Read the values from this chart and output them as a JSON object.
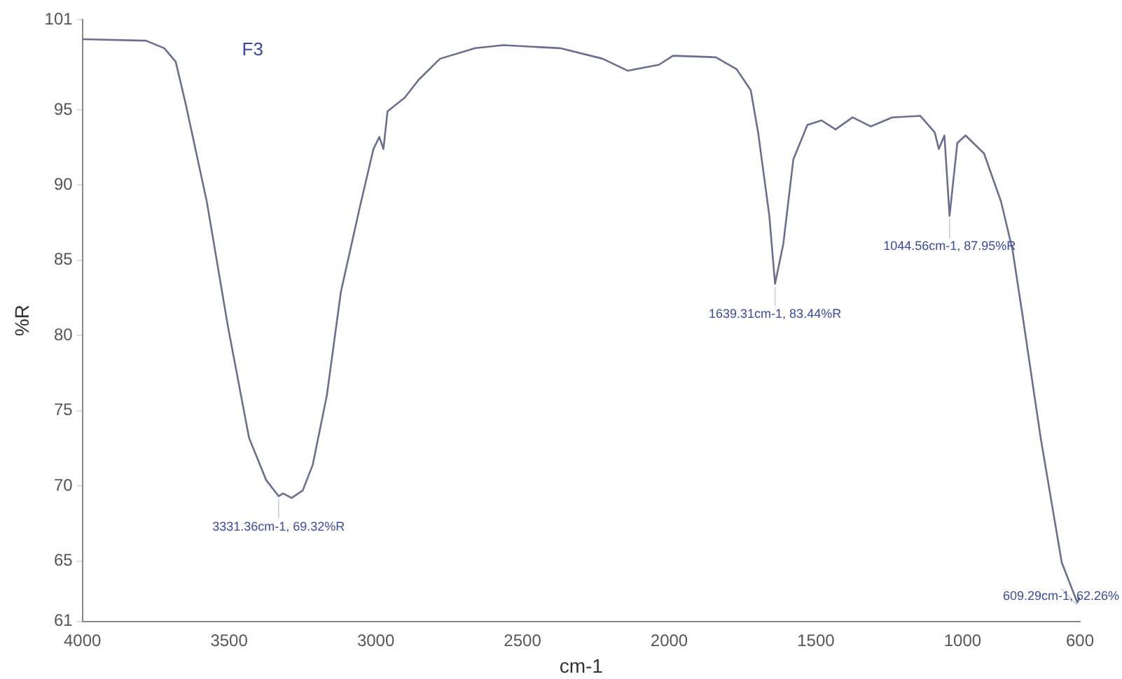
{
  "chart_data": {
    "type": "line",
    "xlabel": "cm-1",
    "ylabel": "%R",
    "color": "#6b6f8f",
    "line_style": "solid",
    "marker": "none",
    "grid": false,
    "legend": false,
    "xlim": [
      4000,
      600
    ],
    "xticks": [
      4000,
      3500,
      3000,
      2500,
      2000,
      1500,
      1000,
      600
    ],
    "ylim": [
      61,
      101
    ],
    "yticks": [
      61,
      65,
      70,
      75,
      80,
      85,
      90,
      95,
      101
    ],
    "x": [
      4000,
      3783,
      3721,
      3682,
      3648,
      3576,
      3504,
      3432,
      3374,
      3331.36,
      3316,
      3287,
      3249,
      3215,
      3167,
      3119,
      3056,
      3008,
      2988,
      2974,
      2960,
      2902,
      2854,
      2781,
      2661,
      2565,
      2372,
      2227,
      2141,
      2035,
      1987,
      1842,
      1770,
      1722,
      1697,
      1659,
      1639.31,
      1611,
      1577,
      1529,
      1481,
      1433,
      1375,
      1313,
      1240,
      1144,
      1095,
      1081,
      1062,
      1044.56,
      1018,
      990,
      927,
      869,
      830,
      797,
      734,
      662,
      609.29,
      600
    ],
    "values": [
      99.7,
      99.6,
      99.1,
      98.2,
      95.4,
      88.9,
      80.6,
      73.2,
      70.4,
      69.32,
      69.5,
      69.2,
      69.7,
      71.4,
      76.0,
      82.9,
      88.4,
      92.4,
      93.2,
      92.4,
      94.9,
      95.8,
      97.0,
      98.4,
      99.1,
      99.3,
      99.1,
      98.4,
      97.6,
      98.0,
      98.6,
      98.5,
      97.7,
      96.3,
      93.5,
      88.0,
      83.44,
      86.1,
      91.7,
      94.0,
      94.3,
      93.7,
      94.5,
      93.9,
      94.5,
      94.6,
      93.5,
      92.4,
      93.3,
      87.95,
      92.8,
      93.3,
      92.1,
      88.9,
      85.7,
      81.5,
      73.2,
      64.9,
      62.26,
      62.6
    ],
    "annotations": [
      "F3",
      {
        "text": "3331.36cm-1, 69.32%R",
        "x": 3331.36,
        "y": 69.32
      },
      {
        "text": "1639.31cm-1, 83.44%R",
        "x": 1639.31,
        "y": 83.44
      },
      {
        "text": "1044.56cm-1, 87.95%R",
        "x": 1044.56,
        "y": 87.95
      },
      {
        "text": "609.29cm-1, 62.26%",
        "x": 609.29,
        "y": 62.26
      }
    ]
  }
}
